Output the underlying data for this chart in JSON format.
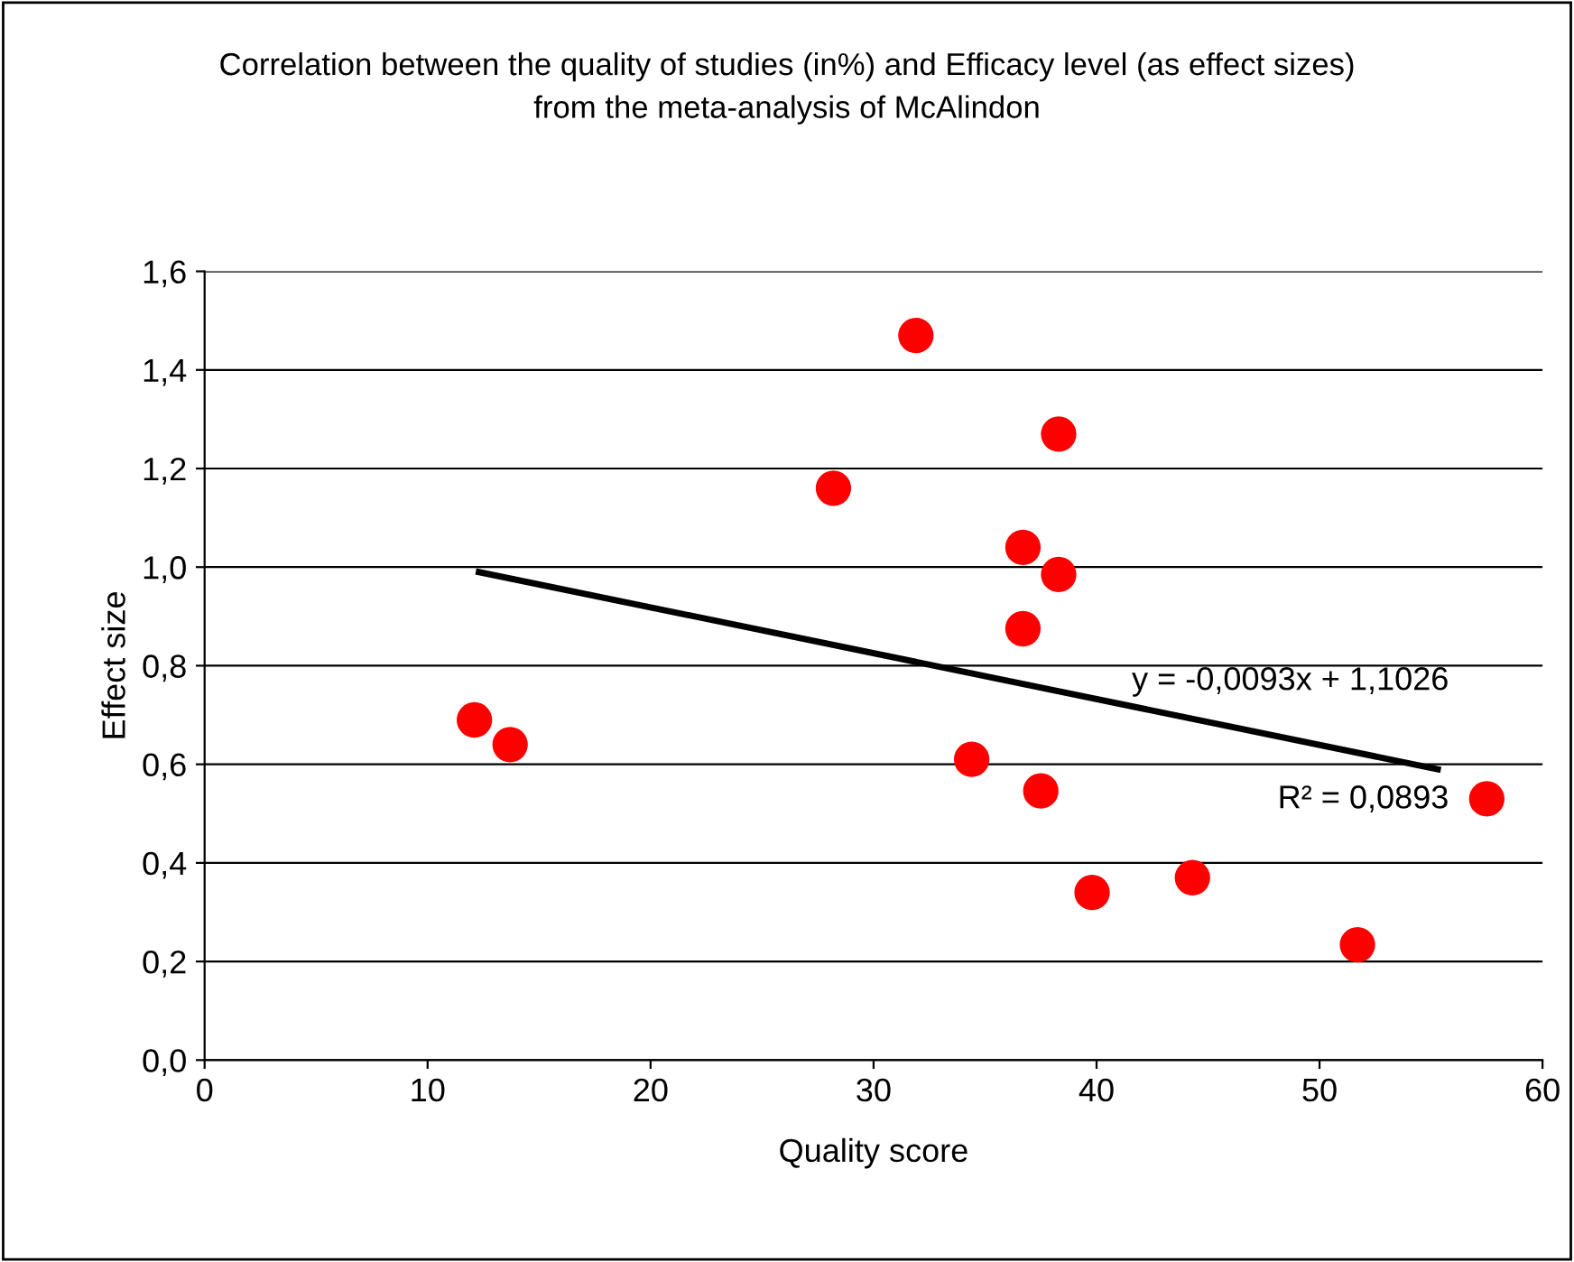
{
  "chart_data": {
    "type": "scatter",
    "title": "Correlation between the quality of studies (in%) and Efficacy level (as effect sizes)\nfrom the meta-analysis of McAlindon",
    "xlabel": "Quality score",
    "ylabel": "Effect size",
    "series": [
      {
        "color": "#ff0000",
        "marker": "circle",
        "x": [
          12.1,
          13.7,
          28.2,
          31.9,
          34.4,
          36.7,
          36.7,
          37.5,
          38.3,
          38.3,
          39.8,
          44.3,
          51.7,
          57.5
        ],
        "values": [
          0.69,
          0.64,
          1.16,
          1.47,
          0.61,
          1.04,
          0.875,
          0.546,
          1.27,
          0.985,
          0.34,
          0.37,
          0.234,
          0.53
        ]
      },
      {
        "type": "line",
        "color": "#000000",
        "marker": "none",
        "x": [
          12.3,
          55.3
        ],
        "values": [
          0.99,
          0.59
        ]
      }
    ],
    "annotations": [
      "y = -0,0093x + 1,1026",
      "R² = 0,0893"
    ],
    "xlim": [
      0,
      60
    ],
    "xticks": [
      0,
      10,
      20,
      30,
      40,
      50,
      60
    ],
    "ylim": [
      0,
      1.6
    ],
    "yticks": [
      {
        "value": 0,
        "label": "0,0"
      },
      {
        "value": 0.2,
        "label": "0,2"
      },
      {
        "value": 0.4,
        "label": "0,4"
      },
      {
        "value": 0.6,
        "label": "0,6"
      },
      {
        "value": 0.8,
        "label": "0,8"
      },
      {
        "value": 1.0,
        "label": "1,0"
      },
      {
        "value": 1.2,
        "label": "1,2"
      },
      {
        "value": 1.4,
        "label": "1,4"
      },
      {
        "value": 1.6,
        "label": "1,6"
      }
    ],
    "grid": "y",
    "legend": false
  }
}
